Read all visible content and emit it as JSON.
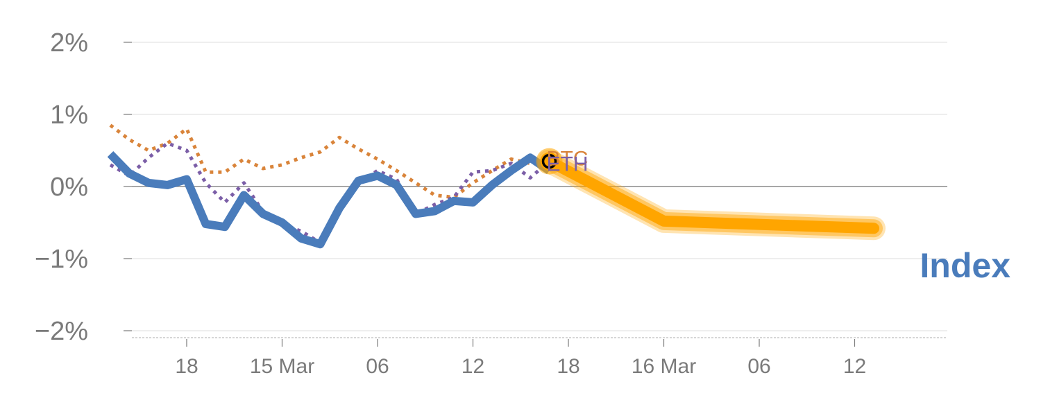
{
  "chart_data": {
    "type": "line",
    "title": "",
    "xlabel": "",
    "ylabel": "",
    "ylim": [
      -2,
      2
    ],
    "grid": true,
    "y_ticks": [
      {
        "value": 2,
        "label": "2%"
      },
      {
        "value": 1,
        "label": "1%"
      },
      {
        "value": 0,
        "label": "0%"
      },
      {
        "value": -1,
        "label": "−1%"
      },
      {
        "value": -2,
        "label": "−2%"
      }
    ],
    "x_ticks": [
      {
        "x": 2,
        "label": "18"
      },
      {
        "x": 7,
        "label": "15 Mar"
      },
      {
        "x": 12,
        "label": "06"
      },
      {
        "x": 17,
        "label": "12"
      },
      {
        "x": 22,
        "label": "18"
      },
      {
        "x": 27,
        "label": "16 Mar"
      },
      {
        "x": 32,
        "label": "06"
      },
      {
        "x": 37,
        "label": "12"
      }
    ],
    "series": [
      {
        "name": "BTC",
        "role": "history",
        "color": "#d9843a",
        "style": "dotted",
        "x": [
          -2,
          -1,
          0,
          1,
          2,
          3,
          4,
          5,
          6,
          7,
          8,
          9,
          10,
          11,
          12,
          13,
          14,
          15,
          16,
          17,
          18,
          19,
          20,
          21
        ],
        "values": [
          0.85,
          0.65,
          0.5,
          0.6,
          0.8,
          0.2,
          0.2,
          0.38,
          0.25,
          0.3,
          0.4,
          0.48,
          0.68,
          0.52,
          0.38,
          0.22,
          0.05,
          -0.12,
          -0.15,
          0.05,
          0.22,
          0.38,
          0.32,
          0.35
        ]
      },
      {
        "name": "ETH",
        "role": "history",
        "color": "#7b5ea7",
        "style": "dotted",
        "x": [
          -2,
          -1,
          0,
          1,
          2,
          3,
          4,
          5,
          6,
          7,
          8,
          9,
          10,
          11,
          12,
          13,
          14,
          15,
          16,
          17,
          18,
          19,
          20,
          21
        ],
        "values": [
          0.3,
          0.15,
          0.4,
          0.6,
          0.5,
          0.05,
          -0.22,
          0.05,
          -0.35,
          -0.52,
          -0.62,
          -0.78,
          -0.3,
          0.05,
          0.22,
          0.1,
          -0.38,
          -0.25,
          -0.15,
          0.2,
          0.22,
          0.32,
          0.12,
          0.35
        ]
      },
      {
        "name": "Index",
        "role": "history",
        "color": "#4a7cbb",
        "style": "solid",
        "x": [
          -2,
          -1,
          0,
          1,
          2,
          3,
          4,
          5,
          6,
          7,
          8,
          9,
          10,
          11,
          12,
          13,
          14,
          15,
          16,
          17,
          18,
          19,
          20,
          21
        ],
        "values": [
          0.45,
          0.18,
          0.05,
          0.02,
          0.1,
          -0.52,
          -0.56,
          -0.12,
          -0.38,
          -0.5,
          -0.72,
          -0.8,
          -0.3,
          0.08,
          0.15,
          0.02,
          -0.38,
          -0.34,
          -0.2,
          -0.22,
          0.02,
          0.22,
          0.4,
          0.22
        ]
      },
      {
        "role": "forecast",
        "color": "#ffa500",
        "style": "band",
        "x": [
          21,
          27,
          38
        ],
        "values": [
          0.35,
          -0.48,
          -0.58
        ]
      }
    ],
    "end_labels": [
      {
        "text": "BTC",
        "color": "#d9843a"
      },
      {
        "text": "ETH",
        "color": "#7b5ea7"
      }
    ],
    "highlight_label": {
      "text": "Index",
      "color": "#4a7cbb"
    },
    "marker": {
      "x": 21,
      "y": 0.35,
      "fill": "#ffa500",
      "stroke": "#000000"
    }
  }
}
